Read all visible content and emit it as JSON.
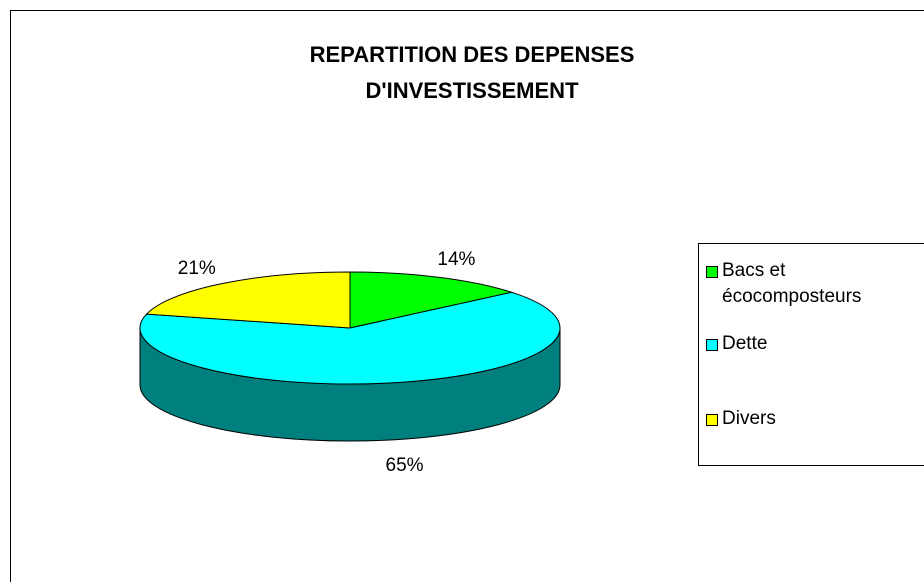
{
  "chart_data": {
    "type": "pie3d",
    "title": [
      "REPARTITION DES DEPENSES",
      "D'INVESTISSEMENT"
    ],
    "categories": [
      "Bacs et écocomposteurs",
      "Dette",
      "Divers"
    ],
    "values": [
      14,
      65,
      21
    ],
    "value_labels": [
      "14%",
      "65%",
      "21%"
    ],
    "colors": [
      "#00ff00",
      "#00ffff",
      "#ffff00"
    ],
    "legend": "right"
  }
}
